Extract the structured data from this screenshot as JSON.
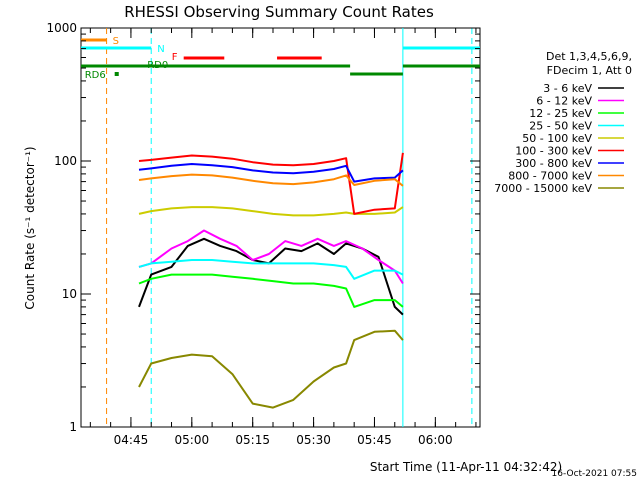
{
  "chart_data": {
    "type": "line",
    "title": "RHESSI Observing Summary Count Rates",
    "xlabel": "Start Time (11-Apr-11 04:32:42)",
    "ylabel": "Count Rate (s⁻¹ detector⁻¹)",
    "yscale": "log",
    "ylim": [
      1,
      1000
    ],
    "xlim": [
      "04:32:42",
      "06:11:00"
    ],
    "y_tick_labels": [
      "1",
      "10",
      "100",
      "1000"
    ],
    "x_ticks": [
      "04:45",
      "05:00",
      "05:15",
      "05:30",
      "05:45",
      "06:00"
    ],
    "legend_header": [
      "Det 1,3,4,5,6,9,",
      "FDecim 1, Att 0"
    ],
    "legend_position": "right, outside plot",
    "timestamp": "16-Oct-2021 07:55",
    "series": [
      {
        "name": "3 - 6 keV",
        "color": "#000000",
        "x": [
          "04:47",
          "04:50",
          "04:55",
          "04:59",
          "05:03",
          "05:07",
          "05:11",
          "05:15",
          "05:19",
          "05:23",
          "05:27",
          "05:31",
          "05:35",
          "05:38",
          "05:42",
          "05:46",
          "05:50",
          "05:52"
        ],
        "values": [
          8,
          14,
          16,
          23,
          26,
          23,
          21,
          18,
          17,
          22,
          21,
          24,
          20,
          24,
          22,
          19,
          8,
          7
        ]
      },
      {
        "name": "6 - 12 keV",
        "color": "#ff00ff",
        "x": [
          "04:47",
          "04:50",
          "04:55",
          "04:59",
          "05:03",
          "05:07",
          "05:11",
          "05:15",
          "05:19",
          "05:23",
          "05:27",
          "05:31",
          "05:35",
          "05:38",
          "05:42",
          "05:46",
          "05:50",
          "05:52"
        ],
        "values": [
          16,
          17,
          22,
          25,
          30,
          26,
          23,
          18,
          20,
          25,
          23,
          26,
          23,
          25,
          22,
          18,
          15,
          12
        ]
      },
      {
        "name": "12 - 25 keV",
        "color": "#00ff00",
        "x": [
          "04:47",
          "04:50",
          "04:55",
          "05:00",
          "05:05",
          "05:10",
          "05:15",
          "05:20",
          "05:25",
          "05:30",
          "05:35",
          "05:38",
          "05:40",
          "05:45",
          "05:50",
          "05:52"
        ],
        "values": [
          12,
          13,
          14,
          14,
          14,
          13.5,
          13,
          12.5,
          12,
          12,
          11.5,
          11,
          8,
          9,
          9,
          8
        ]
      },
      {
        "name": "25 - 50 keV",
        "color": "#00ffff",
        "x": [
          "04:47",
          "04:50",
          "04:55",
          "05:00",
          "05:05",
          "05:10",
          "05:15",
          "05:20",
          "05:25",
          "05:30",
          "05:35",
          "05:38",
          "05:40",
          "05:45",
          "05:50",
          "05:52"
        ],
        "values": [
          16,
          17,
          17.5,
          18,
          18,
          17.5,
          17,
          17,
          17,
          17,
          16.5,
          16,
          13,
          15,
          15,
          14
        ]
      },
      {
        "name": "50 - 100 keV",
        "color": "#cccc00",
        "x": [
          "04:47",
          "04:50",
          "04:55",
          "05:00",
          "05:05",
          "05:10",
          "05:15",
          "05:20",
          "05:25",
          "05:30",
          "05:35",
          "05:38",
          "05:40",
          "05:45",
          "05:50",
          "05:52"
        ],
        "values": [
          40,
          42,
          44,
          45,
          45,
          44,
          42,
          40,
          39,
          39,
          40,
          41,
          40,
          40,
          41,
          45
        ]
      },
      {
        "name": "100 - 300 keV",
        "color": "#ff0000",
        "x": [
          "04:47",
          "04:50",
          "04:55",
          "05:00",
          "05:05",
          "05:10",
          "05:15",
          "05:20",
          "05:25",
          "05:30",
          "05:35",
          "05:38",
          "05:40",
          "05:45",
          "05:50",
          "05:52"
        ],
        "values": [
          100,
          102,
          106,
          110,
          108,
          104,
          98,
          94,
          93,
          95,
          100,
          105,
          40,
          43,
          44,
          115
        ]
      },
      {
        "name": "300 - 800 keV",
        "color": "#0000ff",
        "x": [
          "04:47",
          "04:50",
          "04:55",
          "05:00",
          "05:05",
          "05:10",
          "05:15",
          "05:20",
          "05:25",
          "05:30",
          "05:35",
          "05:38",
          "05:40",
          "05:45",
          "05:50",
          "05:52"
        ],
        "values": [
          86,
          88,
          92,
          95,
          93,
          90,
          85,
          82,
          81,
          83,
          87,
          92,
          70,
          74,
          75,
          85
        ]
      },
      {
        "name": "800 - 7000 keV",
        "color": "#ff8800",
        "x": [
          "04:47",
          "04:50",
          "04:55",
          "05:00",
          "05:05",
          "05:10",
          "05:15",
          "05:20",
          "05:25",
          "05:30",
          "05:35",
          "05:38",
          "05:40",
          "05:45",
          "05:50",
          "05:52"
        ],
        "values": [
          72,
          74,
          77,
          79,
          78,
          75,
          71,
          68,
          67,
          69,
          73,
          78,
          66,
          71,
          73,
          65
        ]
      },
      {
        "name": "7000 - 15000 keV",
        "color": "#888800",
        "x": [
          "04:47",
          "04:50",
          "04:55",
          "05:00",
          "05:05",
          "05:10",
          "05:15",
          "05:20",
          "05:25",
          "05:30",
          "05:35",
          "05:38",
          "05:40",
          "05:45",
          "05:50",
          "05:52"
        ],
        "values": [
          2,
          3,
          3.3,
          3.5,
          3.4,
          2.5,
          1.5,
          1.4,
          1.6,
          2.2,
          2.8,
          3,
          4.5,
          5.2,
          5.3,
          4.5
        ]
      }
    ],
    "flag_bars": [
      {
        "label": "S",
        "color": "#ff8800",
        "segments": [
          [
            "04:32:42",
            "04:39:00"
          ]
        ]
      },
      {
        "label": "N",
        "color": "#00ffff",
        "segments": [
          [
            "04:32:42",
            "04:50:00"
          ],
          [
            "05:52:00",
            "06:11:00"
          ]
        ]
      },
      {
        "label": "F",
        "color": "#ff0000",
        "segments": [
          [
            "04:58:00",
            "05:08:00"
          ],
          [
            "05:21:00",
            "05:32:00"
          ]
        ]
      },
      {
        "label": "RD0",
        "color": "#008800",
        "segments": [
          [
            "04:32:42",
            "05:39:00"
          ],
          [
            "05:39:00",
            "05:52:00"
          ],
          [
            "05:52:00",
            "06:11:00"
          ]
        ]
      },
      {
        "label": "RD6",
        "color": "#008800",
        "segments": [
          [
            "04:41:00",
            "04:42:00"
          ]
        ]
      }
    ],
    "vlines": [
      {
        "color": "#ff8800",
        "style": "dashed",
        "x": "04:39:00"
      },
      {
        "color": "#00ffff",
        "style": "dashed",
        "x": "04:50:00"
      },
      {
        "color": "#00ffff",
        "style": "solid",
        "x": "05:52:00"
      },
      {
        "color": "#00ffff",
        "style": "dashed",
        "x": "06:09:00"
      }
    ]
  }
}
